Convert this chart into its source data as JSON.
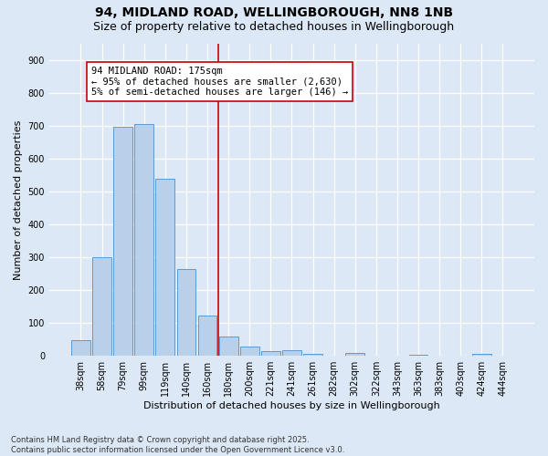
{
  "title_line1": "94, MIDLAND ROAD, WELLINGBOROUGH, NN8 1NB",
  "title_line2": "Size of property relative to detached houses in Wellingborough",
  "xlabel": "Distribution of detached houses by size in Wellingborough",
  "ylabel": "Number of detached properties",
  "categories": [
    "38sqm",
    "58sqm",
    "79sqm",
    "99sqm",
    "119sqm",
    "140sqm",
    "160sqm",
    "180sqm",
    "200sqm",
    "221sqm",
    "241sqm",
    "261sqm",
    "282sqm",
    "302sqm",
    "322sqm",
    "343sqm",
    "363sqm",
    "383sqm",
    "403sqm",
    "424sqm",
    "444sqm"
  ],
  "values": [
    47,
    300,
    695,
    706,
    537,
    263,
    122,
    60,
    28,
    14,
    18,
    7,
    0,
    8,
    0,
    0,
    2,
    0,
    0,
    5,
    0
  ],
  "bar_color": "#b8d0ea",
  "bar_edge_color": "#5b9bd5",
  "vline_color": "#cc0000",
  "annotation_text": "94 MIDLAND ROAD: 175sqm\n← 95% of detached houses are smaller (2,630)\n5% of semi-detached houses are larger (146) →",
  "annotation_box_color": "#ffffff",
  "annotation_box_edge": "#cc0000",
  "ylim": [
    0,
    950
  ],
  "yticks": [
    0,
    100,
    200,
    300,
    400,
    500,
    600,
    700,
    800,
    900
  ],
  "background_color": "#dce8f5",
  "footer_line1": "Contains HM Land Registry data © Crown copyright and database right 2025.",
  "footer_line2": "Contains public sector information licensed under the Open Government Licence v3.0.",
  "title_fontsize": 10,
  "subtitle_fontsize": 9,
  "axis_label_fontsize": 8,
  "tick_fontsize": 7,
  "annotation_fontsize": 7.5,
  "footer_fontsize": 6
}
